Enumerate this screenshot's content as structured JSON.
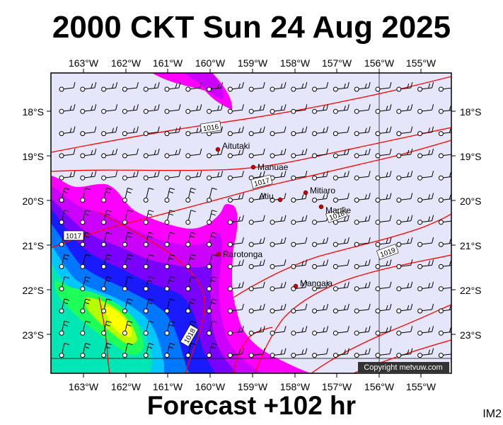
{
  "title": "2000 CKT Sun 24 Aug 2025",
  "footer": "Forecast +102 hr",
  "image_id": "IM2",
  "copyright": "Copyright metvuw.com",
  "colors": {
    "background": "#e6e6fa",
    "isobar": "#ff0000",
    "precip_scale": [
      "#ff00ff",
      "#cc00ff",
      "#7a00ff",
      "#1a1aff",
      "#0077ff",
      "#00c8ff",
      "#00e6b4",
      "#1eff5a",
      "#b4ff00",
      "#ffff00"
    ]
  },
  "axes": {
    "lon_labels": [
      "163°W",
      "162°W",
      "161°W",
      "160°W",
      "159°W",
      "158°W",
      "157°W",
      "156°W",
      "155°W"
    ],
    "lat_labels": [
      "18°S",
      "19°S",
      "20°S",
      "21°S",
      "22°S",
      "23°S"
    ]
  },
  "places": [
    {
      "name": "Aitutaki"
    },
    {
      "name": "Manuae"
    },
    {
      "name": "Mitiaro"
    },
    {
      "name": "Atiu"
    },
    {
      "name": "Mauke"
    },
    {
      "name": "Rarotonga"
    },
    {
      "name": "Mangaia"
    }
  ],
  "isobars": [
    {
      "label": "1016"
    },
    {
      "label": "1017"
    },
    {
      "label": "1017"
    },
    {
      "label": "1018"
    },
    {
      "label": "1019"
    },
    {
      "label": "1018"
    }
  ]
}
